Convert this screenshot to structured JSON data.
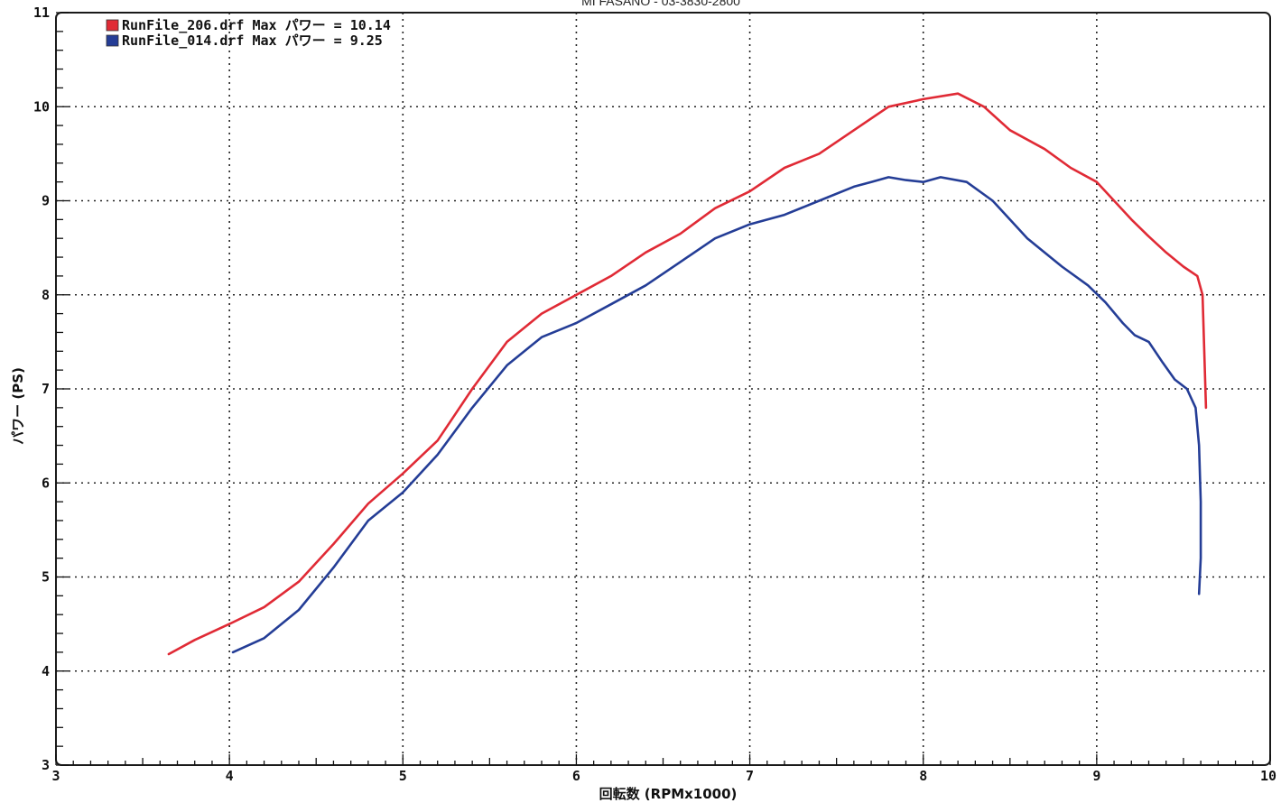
{
  "header_text": "MI FASANO - 03-3830-2800",
  "chart_data": {
    "type": "line",
    "xlabel": "回転数 (RPMx1000)",
    "ylabel": "パワー (PS)",
    "xlim": [
      3,
      10
    ],
    "ylim": [
      3,
      11
    ],
    "x_ticks": [
      "3",
      "4",
      "5",
      "6",
      "7",
      "8",
      "9",
      "10"
    ],
    "y_ticks": [
      "3",
      "4",
      "5",
      "6",
      "7",
      "8",
      "9",
      "10",
      "11"
    ],
    "grid": true,
    "legend_position": "top-left",
    "series": [
      {
        "name": "RunFile_206.drf Max パワー = 10.14",
        "color": "#e02a35",
        "points": [
          [
            3.65,
            4.18
          ],
          [
            3.8,
            4.33
          ],
          [
            4.0,
            4.5
          ],
          [
            4.2,
            4.68
          ],
          [
            4.4,
            4.95
          ],
          [
            4.6,
            5.35
          ],
          [
            4.8,
            5.78
          ],
          [
            5.0,
            6.1
          ],
          [
            5.2,
            6.45
          ],
          [
            5.4,
            7.0
          ],
          [
            5.6,
            7.5
          ],
          [
            5.8,
            7.8
          ],
          [
            6.0,
            8.0
          ],
          [
            6.2,
            8.2
          ],
          [
            6.4,
            8.45
          ],
          [
            6.6,
            8.65
          ],
          [
            6.8,
            8.92
          ],
          [
            7.0,
            9.1
          ],
          [
            7.2,
            9.35
          ],
          [
            7.4,
            9.5
          ],
          [
            7.6,
            9.75
          ],
          [
            7.8,
            10.0
          ],
          [
            8.0,
            10.08
          ],
          [
            8.2,
            10.14
          ],
          [
            8.35,
            10.0
          ],
          [
            8.5,
            9.75
          ],
          [
            8.7,
            9.55
          ],
          [
            8.85,
            9.35
          ],
          [
            9.0,
            9.2
          ],
          [
            9.1,
            9.0
          ],
          [
            9.2,
            8.8
          ],
          [
            9.3,
            8.62
          ],
          [
            9.4,
            8.45
          ],
          [
            9.5,
            8.3
          ],
          [
            9.58,
            8.2
          ],
          [
            9.61,
            8.0
          ],
          [
            9.62,
            7.4
          ],
          [
            9.63,
            6.8
          ]
        ]
      },
      {
        "name": "RunFile_014.drf Max パワー = 9.25",
        "color": "#243d96",
        "points": [
          [
            4.02,
            4.2
          ],
          [
            4.2,
            4.35
          ],
          [
            4.4,
            4.65
          ],
          [
            4.6,
            5.1
          ],
          [
            4.8,
            5.6
          ],
          [
            5.0,
            5.9
          ],
          [
            5.2,
            6.3
          ],
          [
            5.4,
            6.8
          ],
          [
            5.6,
            7.25
          ],
          [
            5.8,
            7.55
          ],
          [
            6.0,
            7.7
          ],
          [
            6.2,
            7.9
          ],
          [
            6.4,
            8.1
          ],
          [
            6.6,
            8.35
          ],
          [
            6.8,
            8.6
          ],
          [
            7.0,
            8.75
          ],
          [
            7.2,
            8.85
          ],
          [
            7.4,
            9.0
          ],
          [
            7.6,
            9.15
          ],
          [
            7.7,
            9.2
          ],
          [
            7.8,
            9.25
          ],
          [
            7.9,
            9.22
          ],
          [
            8.0,
            9.2
          ],
          [
            8.1,
            9.25
          ],
          [
            8.25,
            9.2
          ],
          [
            8.4,
            9.0
          ],
          [
            8.6,
            8.6
          ],
          [
            8.8,
            8.3
          ],
          [
            8.95,
            8.1
          ],
          [
            9.05,
            7.92
          ],
          [
            9.15,
            7.7
          ],
          [
            9.22,
            7.57
          ],
          [
            9.3,
            7.5
          ],
          [
            9.38,
            7.28
          ],
          [
            9.45,
            7.1
          ],
          [
            9.52,
            7.0
          ],
          [
            9.57,
            6.8
          ],
          [
            9.59,
            6.4
          ],
          [
            9.6,
            5.8
          ],
          [
            9.6,
            5.2
          ],
          [
            9.59,
            4.82
          ]
        ]
      }
    ]
  }
}
